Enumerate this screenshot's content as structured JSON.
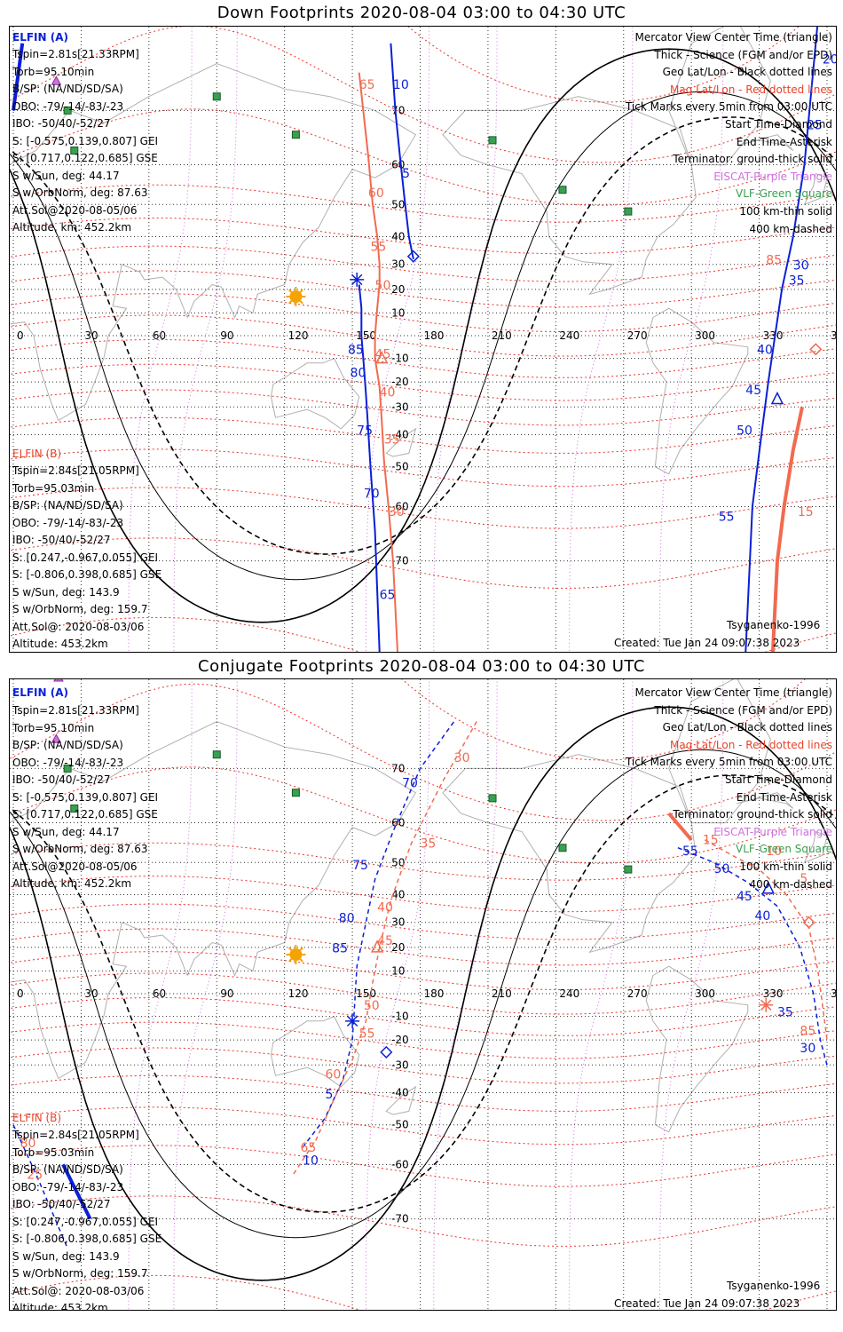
{
  "panels": [
    {
      "title": "Down Footprints 2020-08-04 03:00 to 04:30 UTC",
      "elfin_a": {
        "label": "ELFIN (A)",
        "lines": [
          "Tspin=2.81s[21.33RPM]",
          "Torb=95.10min",
          "B/SP: (NA/ND/SD/SA)",
          "OBO: -79/-14/-83/-23",
          "IBO: -50/40/-52/27",
          "S: [-0.575,0.139,0.807] GEI",
          "S: [0.717,0.122,0.685] GSE",
          "S w/Sun, deg: 44.17",
          "S w/OrbNorm, deg: 87.63",
          "Att.Sol@2020-08-05/06",
          "Altitude, km: 452.2km"
        ]
      },
      "elfin_b": {
        "label": "ELFIN (B)",
        "lines": [
          "Tspin=2.84s[21.05RPM]",
          "Torb=95.03min",
          "B/SP: (NA/ND/SD/SA)",
          "OBO: -79/-14/-83/-23",
          "IBO: -50/40/-52/27",
          "S: [0.247,-0.967,0.055] GEI",
          "S: [-0.806,0.398,0.685] GSE",
          "S w/Sun, deg: 143.9",
          "S w/OrbNorm, deg: 159.7",
          "Att.Sol@: 2020-08-03/06",
          "Altitude: 453.2km"
        ]
      },
      "legend": [
        {
          "text": "Mercator View Center Time (triangle)",
          "color": "#000000"
        },
        {
          "text": "Thick - Science (FGM and/or EPD)",
          "color": "#000000"
        },
        {
          "text": "Geo Lat/Lon - Black dotted lines",
          "color": "#000000"
        },
        {
          "text": "Mag Lat/Lon - Red dotted lines",
          "color": "#e8432a"
        },
        {
          "text": "Tick Marks every 5min from 03:00 UTC",
          "color": "#000000"
        },
        {
          "text": "Start Time-Diamond",
          "color": "#000000"
        },
        {
          "text": "End Time-Asterisk",
          "color": "#000000"
        },
        {
          "text": "Terminator: ground-thick solid",
          "color": "#000000"
        },
        {
          "text": "EISCAT-Purple Triangle",
          "color": "#d070e0"
        },
        {
          "text": "VLF-Green Square",
          "color": "#3aa050"
        },
        {
          "text": "100 km-thin solid",
          "color": "#000000"
        },
        {
          "text": "400 km-dashed",
          "color": "#000000"
        }
      ],
      "footer_left": "Tsyganenko-1996",
      "footer_right": "Created: Tue Jan 24 09:07:38 2023"
    },
    {
      "title": "Conjugate Footprints 2020-08-04 03:00 to 04:30 UTC",
      "elfin_a": {
        "label": "ELFIN (A)",
        "lines": [
          "Tspin=2.81s[21.33RPM]",
          "Torb=95.10min",
          "B/SP: (NA/ND/SD/SA)",
          "OBO: -79/-14/-83/-23",
          "IBO: -50/40/-52/27",
          "S: [-0.575,0.139,0.807] GEI",
          "S: [0.717,0.122,0.685] GSE",
          "S w/Sun, deg: 44.17",
          "S w/OrbNorm, deg: 87.63",
          "Att.Sol@2020-08-05/06",
          "Altitude, km: 452.2km"
        ]
      },
      "elfin_b": {
        "label": "ELFIN (B)",
        "lines": [
          "Tspin=2.84s[21.05RPM]",
          "Torb=95.03min",
          "B/SP: (NA/ND/SD/SA)",
          "OBO: -79/-14/-83/-23",
          "IBO: -50/40/-52/27",
          "S: [0.247,-0.967,0.055] GEI",
          "S: [-0.806,0.398,0.685] GSE",
          "S w/Sun, deg: 143.9",
          "S w/OrbNorm, deg: 159.7",
          "Att.Sol@: 2020-08-03/06",
          "Altitude: 453.2km"
        ]
      },
      "legend": [
        {
          "text": "Mercator View Center Time (triangle)",
          "color": "#000000"
        },
        {
          "text": "Thick - Science (FGM and/or EPD)",
          "color": "#000000"
        },
        {
          "text": "Geo Lat/Lon - Black dotted lines",
          "color": "#000000"
        },
        {
          "text": "Mag Lat/Lon - Red dotted lines",
          "color": "#e8432a"
        },
        {
          "text": "Tick Marks every 5min from 03:00 UTC",
          "color": "#000000"
        },
        {
          "text": "Start Time-Diamond",
          "color": "#000000"
        },
        {
          "text": "End Time-Asterisk",
          "color": "#000000"
        },
        {
          "text": "Terminator: ground-thick solid",
          "color": "#000000"
        },
        {
          "text": "EISCAT-Purple Triangle",
          "color": "#d070e0"
        },
        {
          "text": "VLF-Green Square",
          "color": "#3aa050"
        },
        {
          "text": "100 km-thin solid",
          "color": "#000000"
        },
        {
          "text": "400 km-dashed",
          "color": "#000000"
        }
      ],
      "footer_left": "Tsyganenko-1996",
      "footer_right": "Created: Tue Jan 24 09:07:38 2023"
    }
  ],
  "map": {
    "projection": "Mercator",
    "lon_range": [
      0,
      360
    ],
    "lat_range": [
      -80,
      80
    ],
    "lon_ticks": [
      "0",
      "30",
      "60",
      "90",
      "120",
      "150",
      "180",
      "210",
      "240",
      "270",
      "300",
      "330",
      "360"
    ],
    "lat_ticks": [
      "70",
      "60",
      "50",
      "40",
      "30",
      "20",
      "10",
      "-10",
      "-20",
      "-30",
      "-40",
      "-50",
      "-60",
      "-70"
    ],
    "colors": {
      "elfin_a": "#0a1fd6",
      "elfin_b": "#f26a4f",
      "mag_grid": "#e8322a",
      "geo_grid": "#000000",
      "eiscat": "#d070e0",
      "vlf": "#3aa050",
      "sun": "#f5a300",
      "land": "#b0b0b0"
    }
  },
  "tracks": [
    {
      "a": {
        "points": [
          [
            177,
            32
          ],
          [
            175,
            40
          ],
          [
            173,
            52
          ],
          [
            171,
            62
          ],
          [
            169,
            70
          ],
          [
            167,
            78
          ]
        ],
        "labels": [
          [
            "5",
            172,
            57
          ],
          [
            "10",
            168,
            73
          ]
        ],
        "b_points": [
          [
            162,
            -80
          ],
          [
            160,
            -65
          ],
          [
            158,
            -50
          ],
          [
            157,
            -38
          ],
          [
            156,
            -25
          ],
          [
            155,
            -12
          ],
          [
            154,
            0
          ],
          [
            154,
            12
          ],
          [
            153,
            22
          ]
        ],
        "b_labels": [
          [
            "65",
            162,
            -75
          ],
          [
            "70",
            155,
            -58
          ],
          [
            "75",
            152,
            -40
          ],
          [
            "80",
            149,
            -18
          ],
          [
            "85",
            148,
            -8
          ]
        ],
        "right_points": [
          [
            324,
            -80
          ],
          [
            327,
            -60
          ],
          [
            331,
            -40
          ],
          [
            334,
            -20
          ],
          [
            337,
            0
          ],
          [
            340,
            20
          ],
          [
            345,
            40
          ],
          [
            350,
            60
          ],
          [
            356,
            80
          ]
        ],
        "right_labels": [
          [
            "55",
            312,
            -63
          ],
          [
            "50",
            320,
            -40
          ],
          [
            "45",
            324,
            -25
          ],
          [
            "40",
            329,
            -8
          ],
          [
            "35",
            343,
            22
          ],
          [
            "30",
            345,
            28
          ],
          [
            "25",
            351,
            67
          ],
          [
            "20",
            358,
            76
          ]
        ]
      },
      "b": {
        "points": [
          [
            170,
            -80
          ],
          [
            168,
            -70
          ],
          [
            166,
            -60
          ],
          [
            164,
            -48
          ],
          [
            163,
            -35
          ],
          [
            162,
            -22
          ],
          [
            160,
            -10
          ],
          [
            160,
            0
          ],
          [
            161,
            12
          ],
          [
            162,
            22
          ],
          [
            162,
            30
          ],
          [
            161,
            40
          ],
          [
            159,
            50
          ],
          [
            157,
            62
          ],
          [
            153,
            75
          ]
        ],
        "labels": [
          [
            "30",
            166,
            -62
          ],
          [
            "35",
            164,
            -43
          ],
          [
            "40",
            162,
            -26
          ],
          [
            "45",
            160,
            -10
          ],
          [
            "50",
            160,
            20
          ],
          [
            "55",
            158,
            35
          ],
          [
            "60",
            157,
            52
          ],
          [
            "65",
            153,
            73
          ]
        ],
        "right_points": [
          [
            336,
            -80
          ],
          [
            338,
            -70
          ],
          [
            341,
            -60
          ],
          [
            345,
            -45
          ],
          [
            349,
            -30
          ]
        ],
        "right_labels": [
          [
            "15",
            347,
            -62
          ],
          [
            "85",
            333,
            30
          ]
        ]
      }
    }
  ]
}
